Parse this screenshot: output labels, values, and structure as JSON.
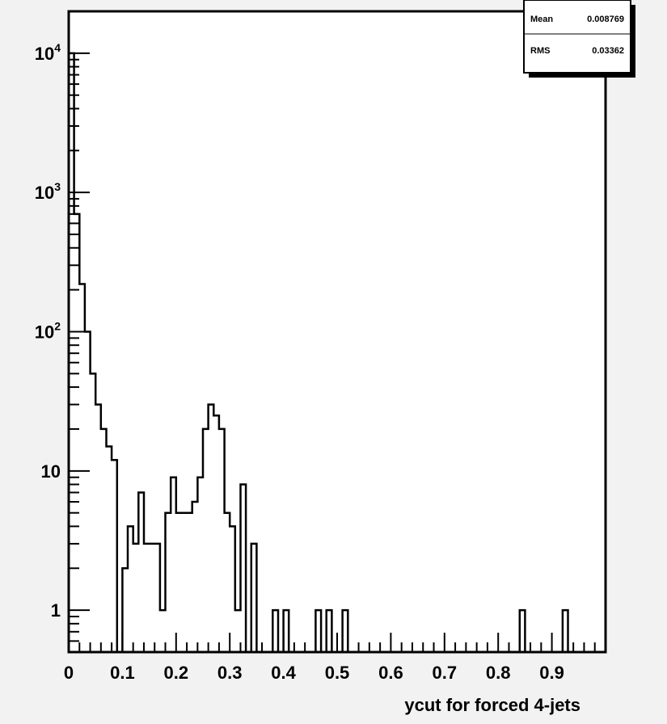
{
  "chart_data": {
    "type": "histogram",
    "xlabel": "ycut for forced 4-jets",
    "ylabel": "",
    "xlim": [
      0,
      1
    ],
    "ylim": [
      0.5,
      20000
    ],
    "log_y": true,
    "grid": false,
    "x_tick_labels": [
      "0",
      "0.1",
      "0.2",
      "0.3",
      "0.4",
      "0.5",
      "0.6",
      "0.7",
      "0.8",
      "0.9"
    ],
    "y_tick_labels": [
      {
        "base": "10",
        "exp": "4"
      },
      {
        "base": "10",
        "exp": "3"
      },
      {
        "base": "10",
        "exp": "2"
      },
      {
        "base": "10",
        "exp": ""
      },
      {
        "base": "1",
        "exp": ""
      }
    ],
    "bins": {
      "x_start": 0,
      "width": 0.01,
      "values": [
        10000,
        700,
        220,
        100,
        50,
        30,
        20,
        15,
        12,
        0,
        2,
        4,
        3,
        7,
        3,
        3,
        3,
        1,
        5,
        9,
        5,
        5,
        5,
        6,
        9,
        20,
        30,
        25,
        20,
        5,
        4,
        1,
        8,
        0,
        3,
        0,
        0,
        0,
        1,
        0,
        1,
        0,
        0,
        0,
        0,
        0,
        1,
        0,
        1,
        0,
        0,
        1,
        0,
        0,
        0,
        0,
        0,
        0,
        0,
        0,
        0,
        0,
        0,
        0,
        0,
        0,
        0,
        0,
        0,
        0,
        0,
        0,
        0,
        0,
        0,
        0,
        0,
        0,
        0,
        0,
        0,
        0,
        0,
        0,
        1,
        0,
        0,
        0,
        0,
        0,
        0,
        0,
        1,
        0,
        0,
        0,
        0,
        0,
        0,
        0
      ]
    },
    "stats": {
      "mean_label": "Mean",
      "mean_value": "0.008769",
      "rms_label": "RMS",
      "rms_value": "0.03362"
    }
  }
}
